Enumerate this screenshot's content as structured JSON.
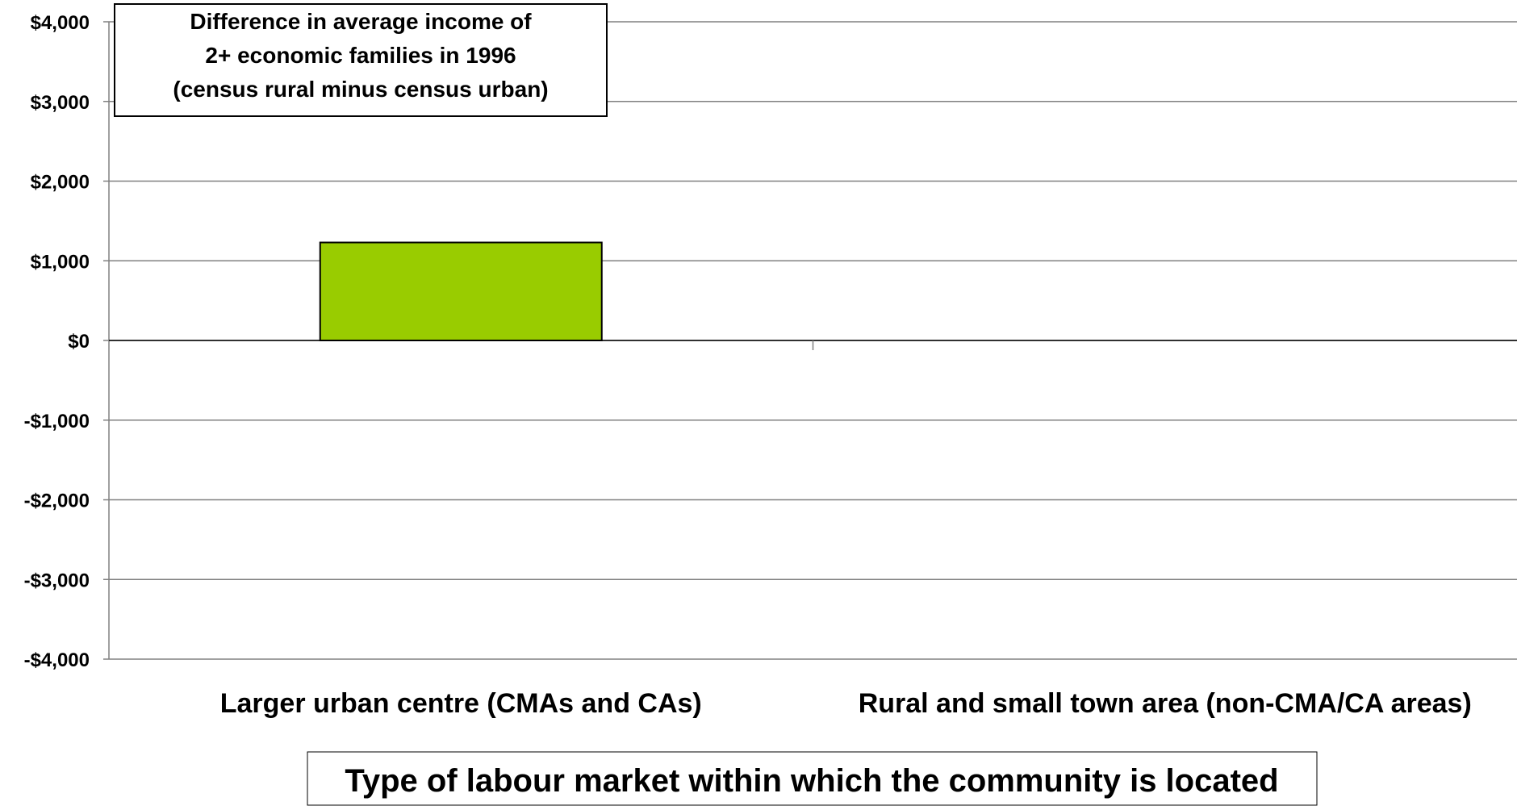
{
  "chart_data": {
    "type": "bar",
    "title": "",
    "annotation_lines": [
      "Difference in average income of",
      "2+ economic families in 1996",
      "(census rural minus census urban)"
    ],
    "xlabel": "Type of labour market within which the community is located",
    "ylabel": "",
    "categories": [
      "Larger urban centre (CMAs and CAs)",
      "Rural and small town area (non-CMA/CA areas)"
    ],
    "series": [
      {
        "values": [
          1230,
          0
        ]
      }
    ],
    "ylim": [
      -4000,
      4000
    ],
    "yticks": [
      4000,
      3000,
      2000,
      1000,
      0,
      -1000,
      -2000,
      -3000,
      -4000
    ],
    "ytick_labels": [
      "$4,000",
      "$3,000",
      "$2,000",
      "$1,000",
      "$0",
      "-$1,000",
      "-$2,000",
      "-$3,000",
      "-$4,000"
    ],
    "grid": true,
    "legend": "none",
    "colors": {
      "bar": "#99cc00",
      "bar_border": "#000000",
      "gridline": "#808080",
      "axis": "#808080"
    }
  }
}
